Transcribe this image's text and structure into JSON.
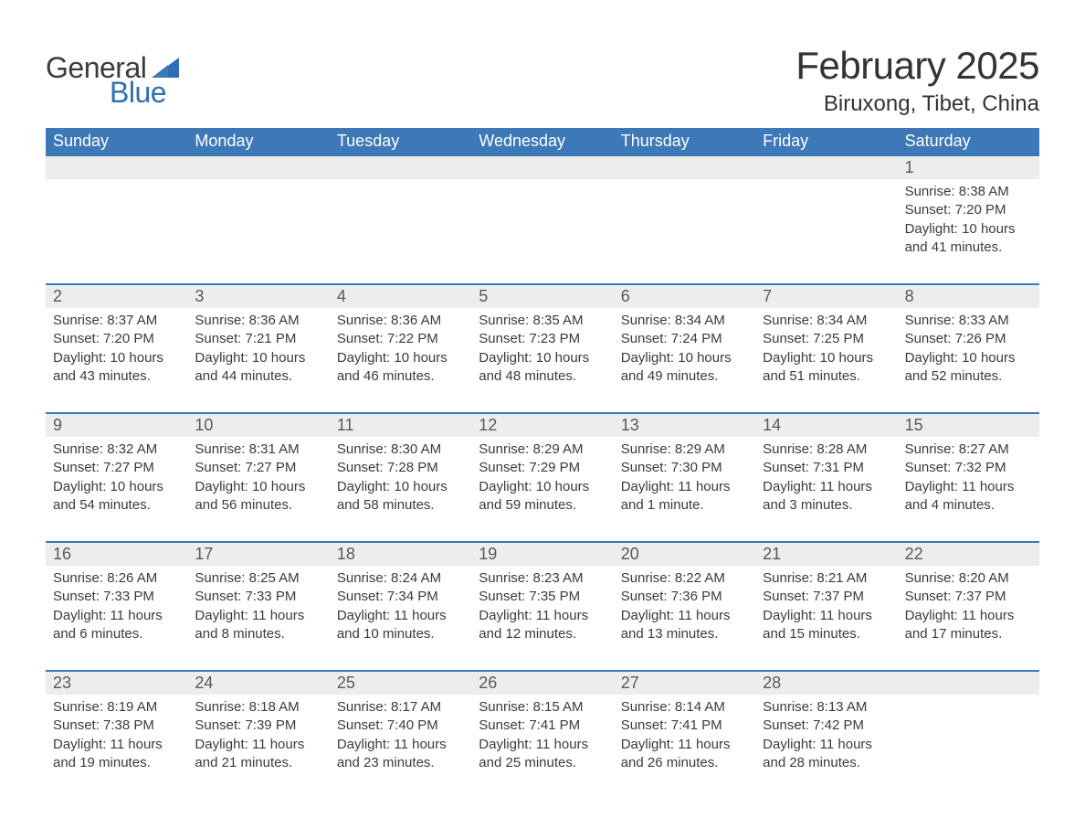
{
  "brand": {
    "text1": "General",
    "text2": "Blue",
    "accent_color": "#2f6eb4"
  },
  "title": "February 2025",
  "location": "Biruxong, Tibet, China",
  "colors": {
    "header_bg": "#3d78b8",
    "header_text": "#ffffff",
    "daynum_bg": "#ededed",
    "daynum_text": "#595959",
    "rule": "#3d78b8",
    "body_text": "#3b3b3b",
    "page_bg": "#ffffff"
  },
  "weekdays": [
    "Sunday",
    "Monday",
    "Tuesday",
    "Wednesday",
    "Thursday",
    "Friday",
    "Saturday"
  ],
  "weeks": [
    {
      "days": [
        {
          "n": null
        },
        {
          "n": null
        },
        {
          "n": null
        },
        {
          "n": null
        },
        {
          "n": null
        },
        {
          "n": null
        },
        {
          "n": 1,
          "sunrise": "8:38 AM",
          "sunset": "7:20 PM",
          "daylight": "10 hours and 41 minutes."
        }
      ]
    },
    {
      "days": [
        {
          "n": 2,
          "sunrise": "8:37 AM",
          "sunset": "7:20 PM",
          "daylight": "10 hours and 43 minutes."
        },
        {
          "n": 3,
          "sunrise": "8:36 AM",
          "sunset": "7:21 PM",
          "daylight": "10 hours and 44 minutes."
        },
        {
          "n": 4,
          "sunrise": "8:36 AM",
          "sunset": "7:22 PM",
          "daylight": "10 hours and 46 minutes."
        },
        {
          "n": 5,
          "sunrise": "8:35 AM",
          "sunset": "7:23 PM",
          "daylight": "10 hours and 48 minutes."
        },
        {
          "n": 6,
          "sunrise": "8:34 AM",
          "sunset": "7:24 PM",
          "daylight": "10 hours and 49 minutes."
        },
        {
          "n": 7,
          "sunrise": "8:34 AM",
          "sunset": "7:25 PM",
          "daylight": "10 hours and 51 minutes."
        },
        {
          "n": 8,
          "sunrise": "8:33 AM",
          "sunset": "7:26 PM",
          "daylight": "10 hours and 52 minutes."
        }
      ]
    },
    {
      "days": [
        {
          "n": 9,
          "sunrise": "8:32 AM",
          "sunset": "7:27 PM",
          "daylight": "10 hours and 54 minutes."
        },
        {
          "n": 10,
          "sunrise": "8:31 AM",
          "sunset": "7:27 PM",
          "daylight": "10 hours and 56 minutes."
        },
        {
          "n": 11,
          "sunrise": "8:30 AM",
          "sunset": "7:28 PM",
          "daylight": "10 hours and 58 minutes."
        },
        {
          "n": 12,
          "sunrise": "8:29 AM",
          "sunset": "7:29 PM",
          "daylight": "10 hours and 59 minutes."
        },
        {
          "n": 13,
          "sunrise": "8:29 AM",
          "sunset": "7:30 PM",
          "daylight": "11 hours and 1 minute."
        },
        {
          "n": 14,
          "sunrise": "8:28 AM",
          "sunset": "7:31 PM",
          "daylight": "11 hours and 3 minutes."
        },
        {
          "n": 15,
          "sunrise": "8:27 AM",
          "sunset": "7:32 PM",
          "daylight": "11 hours and 4 minutes."
        }
      ]
    },
    {
      "days": [
        {
          "n": 16,
          "sunrise": "8:26 AM",
          "sunset": "7:33 PM",
          "daylight": "11 hours and 6 minutes."
        },
        {
          "n": 17,
          "sunrise": "8:25 AM",
          "sunset": "7:33 PM",
          "daylight": "11 hours and 8 minutes."
        },
        {
          "n": 18,
          "sunrise": "8:24 AM",
          "sunset": "7:34 PM",
          "daylight": "11 hours and 10 minutes."
        },
        {
          "n": 19,
          "sunrise": "8:23 AM",
          "sunset": "7:35 PM",
          "daylight": "11 hours and 12 minutes."
        },
        {
          "n": 20,
          "sunrise": "8:22 AM",
          "sunset": "7:36 PM",
          "daylight": "11 hours and 13 minutes."
        },
        {
          "n": 21,
          "sunrise": "8:21 AM",
          "sunset": "7:37 PM",
          "daylight": "11 hours and 15 minutes."
        },
        {
          "n": 22,
          "sunrise": "8:20 AM",
          "sunset": "7:37 PM",
          "daylight": "11 hours and 17 minutes."
        }
      ]
    },
    {
      "days": [
        {
          "n": 23,
          "sunrise": "8:19 AM",
          "sunset": "7:38 PM",
          "daylight": "11 hours and 19 minutes."
        },
        {
          "n": 24,
          "sunrise": "8:18 AM",
          "sunset": "7:39 PM",
          "daylight": "11 hours and 21 minutes."
        },
        {
          "n": 25,
          "sunrise": "8:17 AM",
          "sunset": "7:40 PM",
          "daylight": "11 hours and 23 minutes."
        },
        {
          "n": 26,
          "sunrise": "8:15 AM",
          "sunset": "7:41 PM",
          "daylight": "11 hours and 25 minutes."
        },
        {
          "n": 27,
          "sunrise": "8:14 AM",
          "sunset": "7:41 PM",
          "daylight": "11 hours and 26 minutes."
        },
        {
          "n": 28,
          "sunrise": "8:13 AM",
          "sunset": "7:42 PM",
          "daylight": "11 hours and 28 minutes."
        },
        {
          "n": null
        }
      ]
    }
  ],
  "labels": {
    "sunrise_prefix": "Sunrise: ",
    "sunset_prefix": "Sunset: ",
    "daylight_prefix": "Daylight: "
  }
}
